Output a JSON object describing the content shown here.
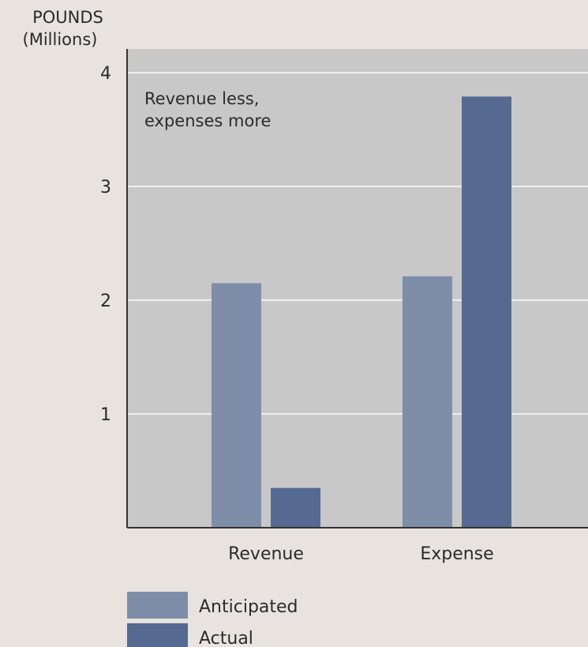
{
  "chart_data": {
    "type": "bar",
    "title": "",
    "ylabel": [
      "POUNDS",
      "(Millions)"
    ],
    "xlabel": "",
    "categories": [
      "Revenue",
      "Expense"
    ],
    "series": [
      {
        "name": "Anticipated",
        "values": [
          2.15,
          2.21
        ],
        "color": "#7f8ea8"
      },
      {
        "name": "Actual",
        "values": [
          0.35,
          3.79
        ],
        "color": "#566a91"
      }
    ],
    "ylim": [
      0,
      4.2
    ],
    "yticks": [
      1,
      2,
      3,
      4
    ],
    "grid": true,
    "annotation": [
      "Revenue less,",
      "expenses more"
    ],
    "legend": "bottom-left",
    "colors": {
      "background": "#e8e3df",
      "plot_background": "#c8c8c8",
      "gridline": "#efefef",
      "axis": "#333333"
    }
  }
}
